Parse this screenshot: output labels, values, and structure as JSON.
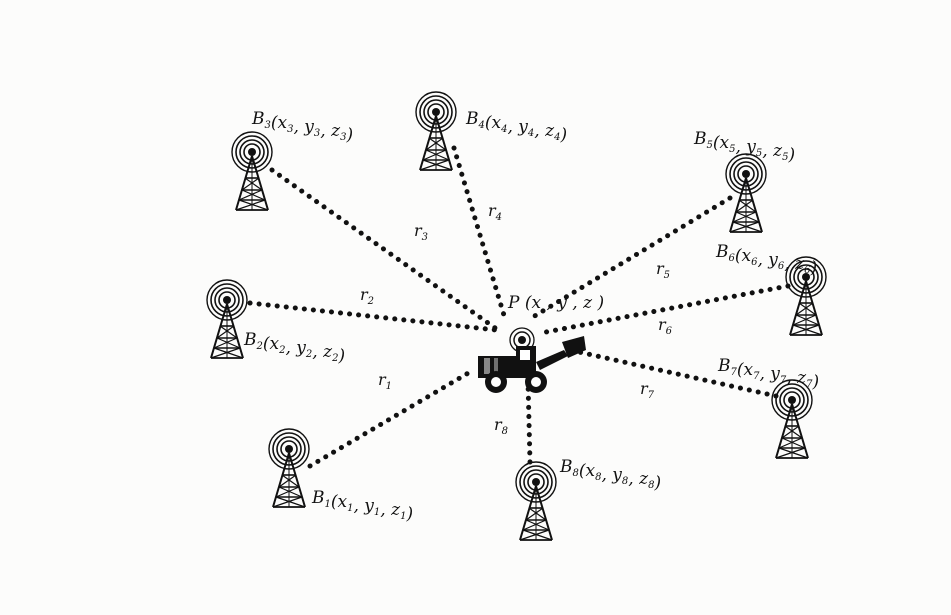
{
  "diagram": {
    "point": {
      "name": "P",
      "label": "P (x , y , z )"
    },
    "bases": [
      {
        "id": "B1",
        "letter": "B",
        "sub": "1",
        "coords": [
          {
            "v": "x",
            "s": "1"
          },
          {
            "v": "y",
            "s": "1"
          },
          {
            "v": "z",
            "s": "1"
          }
        ],
        "range": {
          "letter": "r",
          "sub": "1"
        }
      },
      {
        "id": "B2",
        "letter": "B",
        "sub": "2",
        "coords": [
          {
            "v": "x",
            "s": "2"
          },
          {
            "v": "y",
            "s": "2"
          },
          {
            "v": "z",
            "s": "2"
          }
        ],
        "range": {
          "letter": "r",
          "sub": "2"
        }
      },
      {
        "id": "B3",
        "letter": "B",
        "sub": "3",
        "coords": [
          {
            "v": "x",
            "s": "3"
          },
          {
            "v": "y",
            "s": "3"
          },
          {
            "v": "z",
            "s": "3"
          }
        ],
        "range": {
          "letter": "r",
          "sub": "3"
        }
      },
      {
        "id": "B4",
        "letter": "B",
        "sub": "4",
        "coords": [
          {
            "v": "x",
            "s": "4"
          },
          {
            "v": "y",
            "s": "4"
          },
          {
            "v": "z",
            "s": "4"
          }
        ],
        "range": {
          "letter": "r",
          "sub": "4"
        }
      },
      {
        "id": "B5",
        "letter": "B",
        "sub": "5",
        "coords": [
          {
            "v": "x",
            "s": "5"
          },
          {
            "v": "y",
            "s": "5"
          },
          {
            "v": "z",
            "s": "5"
          }
        ],
        "range": {
          "letter": "r",
          "sub": "5"
        }
      },
      {
        "id": "B6",
        "letter": "B",
        "sub": "6",
        "coords": [
          {
            "v": "x",
            "s": "6"
          },
          {
            "v": "y",
            "s": "6"
          },
          {
            "v": "z",
            "s": "6"
          }
        ],
        "range": {
          "letter": "r",
          "sub": "6"
        }
      },
      {
        "id": "B7",
        "letter": "B",
        "sub": "7",
        "coords": [
          {
            "v": "x",
            "s": "7"
          },
          {
            "v": "y",
            "s": "7"
          },
          {
            "v": "z",
            "s": "7"
          }
        ],
        "range": {
          "letter": "r",
          "sub": "7"
        }
      },
      {
        "id": "B8",
        "letter": "B",
        "sub": "8",
        "coords": [
          {
            "v": "x",
            "s": "8"
          },
          {
            "v": "y",
            "s": "8"
          },
          {
            "v": "z",
            "s": "8"
          }
        ],
        "range": {
          "letter": "r",
          "sub": "8"
        }
      }
    ],
    "colors": {
      "ink": "#111111",
      "paper": "#fcfcfb"
    },
    "icons": {
      "base": "radio-tower-icon",
      "mobile": "loader-vehicle-icon"
    }
  }
}
